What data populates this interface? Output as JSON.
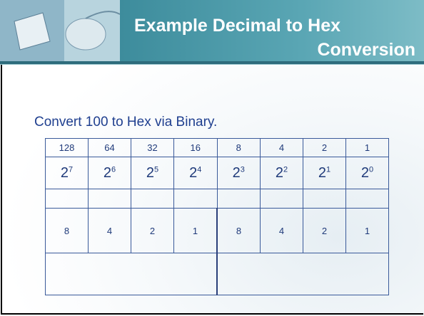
{
  "header": {
    "title_line1": "Example Decimal to Hex",
    "title_line2": "Conversion"
  },
  "subtitle": "Convert 100 to Hex via Binary.",
  "table": {
    "place_values": [
      128,
      64,
      32,
      16,
      8,
      4,
      2,
      1
    ],
    "powers": [
      {
        "base": "2",
        "exp": "7"
      },
      {
        "base": "2",
        "exp": "6"
      },
      {
        "base": "2",
        "exp": "5"
      },
      {
        "base": "2",
        "exp": "4"
      },
      {
        "base": "2",
        "exp": "3"
      },
      {
        "base": "2",
        "exp": "2"
      },
      {
        "base": "2",
        "exp": "1"
      },
      {
        "base": "2",
        "exp": "0"
      }
    ],
    "nibble_values": [
      8,
      4,
      2,
      1,
      8,
      4,
      2,
      1
    ]
  }
}
